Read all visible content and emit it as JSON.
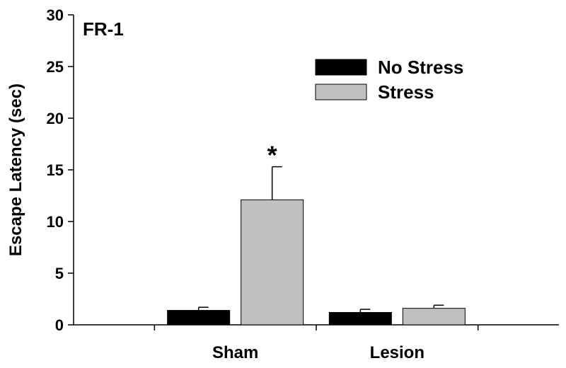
{
  "chart_data": {
    "type": "bar",
    "panel_label": "FR-1",
    "ylabel": "Escape Latency (sec)",
    "xlabel": "",
    "ylim": [
      0,
      30
    ],
    "yticks": [
      0,
      5,
      10,
      15,
      20,
      25,
      30
    ],
    "categories": [
      "Sham",
      "Lesion"
    ],
    "series": [
      {
        "name": "No Stress",
        "color": "#000000",
        "values": [
          1.4,
          1.2
        ],
        "errors": [
          0.3,
          0.3
        ]
      },
      {
        "name": "Stress",
        "color": "#c0c0c0",
        "values": [
          12.1,
          1.6
        ],
        "errors": [
          3.2,
          0.3
        ]
      }
    ],
    "annotations": [
      {
        "text": "*",
        "category": "Sham",
        "series": "Stress"
      }
    ],
    "legend_position": "top-right",
    "grid": false
  }
}
